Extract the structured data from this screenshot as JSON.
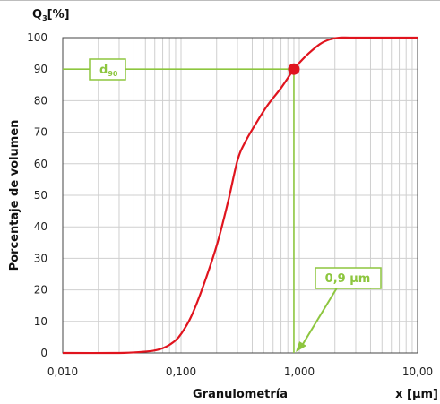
{
  "chart_data": {
    "type": "line",
    "y_axis_label": "Porcentaje de volumen",
    "x_axis_label": "Granulometría",
    "y_unit_prefix": "Q",
    "y_unit_sub": "3",
    "y_unit_suffix": "[%]",
    "x_unit": "x [µm]",
    "x_scale": "log",
    "xlim": [
      0.01,
      10
    ],
    "ylim": [
      0,
      100
    ],
    "x_ticks": [
      {
        "value": 0.01,
        "label": "0,010"
      },
      {
        "value": 0.1,
        "label": "0,100"
      },
      {
        "value": 1,
        "label": "1,000"
      },
      {
        "value": 10,
        "label": "10,00"
      }
    ],
    "y_ticks": [
      {
        "value": 0,
        "label": "0"
      },
      {
        "value": 10,
        "label": "10"
      },
      {
        "value": 20,
        "label": "20"
      },
      {
        "value": 30,
        "label": "30"
      },
      {
        "value": 40,
        "label": "40"
      },
      {
        "value": 50,
        "label": "50"
      },
      {
        "value": 60,
        "label": "60"
      },
      {
        "value": 70,
        "label": "70"
      },
      {
        "value": 80,
        "label": "80"
      },
      {
        "value": 90,
        "label": "90"
      },
      {
        "value": 100,
        "label": "100"
      }
    ],
    "grid": true,
    "series": [
      {
        "color": "#e0141e",
        "points": [
          [
            0.01,
            0
          ],
          [
            0.03,
            0
          ],
          [
            0.045,
            0.3
          ],
          [
            0.06,
            0.8
          ],
          [
            0.075,
            2
          ],
          [
            0.09,
            4
          ],
          [
            0.1,
            6
          ],
          [
            0.12,
            11
          ],
          [
            0.15,
            20
          ],
          [
            0.2,
            34
          ],
          [
            0.25,
            48
          ],
          [
            0.3,
            61
          ],
          [
            0.35,
            67
          ],
          [
            0.45,
            74
          ],
          [
            0.55,
            79
          ],
          [
            0.7,
            84
          ],
          [
            0.9,
            90
          ],
          [
            1.0,
            92
          ],
          [
            1.2,
            95
          ],
          [
            1.5,
            98
          ],
          [
            1.8,
            99.4
          ],
          [
            2.2,
            100
          ],
          [
            3,
            100
          ],
          [
            10,
            100
          ]
        ]
      }
    ],
    "marker": {
      "x": 0.9,
      "y": 90,
      "color": "#e0141e"
    },
    "guide_color": "#8dc63f",
    "annotations": {
      "d90_main": "d",
      "d90_sub": "90",
      "value_label": "0,9 µm"
    }
  }
}
